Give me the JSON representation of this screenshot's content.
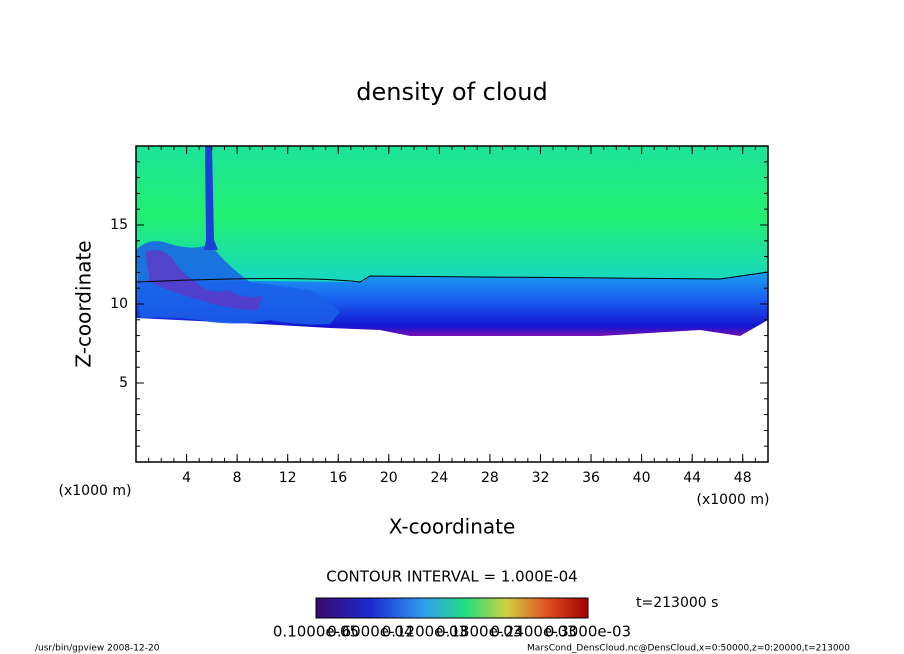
{
  "chart_data": {
    "type": "contour",
    "title": "density of cloud",
    "x_label": "X-coordinate",
    "y_label": "Z-coordinate",
    "x_unit": "(x1000 m)",
    "y_unit": "(x1000 m)",
    "xlim": [
      0,
      50
    ],
    "ylim": [
      0,
      20
    ],
    "xticks": [
      4,
      8,
      12,
      16,
      20,
      24,
      28,
      32,
      36,
      40,
      44,
      48
    ],
    "yticks": [
      5,
      10,
      15
    ],
    "contour_interval": "CONTOUR INTERVAL = 1.000E-04",
    "time_label": "t=213000 s",
    "colorbar_labels": [
      "0.1000e-05",
      "0.6000e-04",
      "0.1200e-03",
      "0.1800e-03",
      "0.2400e-03",
      "0.3000e-03"
    ],
    "footer_left": "/usr/bin/gpview   2008-12-20",
    "footer_right": "MarsCond_DensCloud.nc@DensCloud,x=0:50000,z=0:20000,t=213000"
  }
}
